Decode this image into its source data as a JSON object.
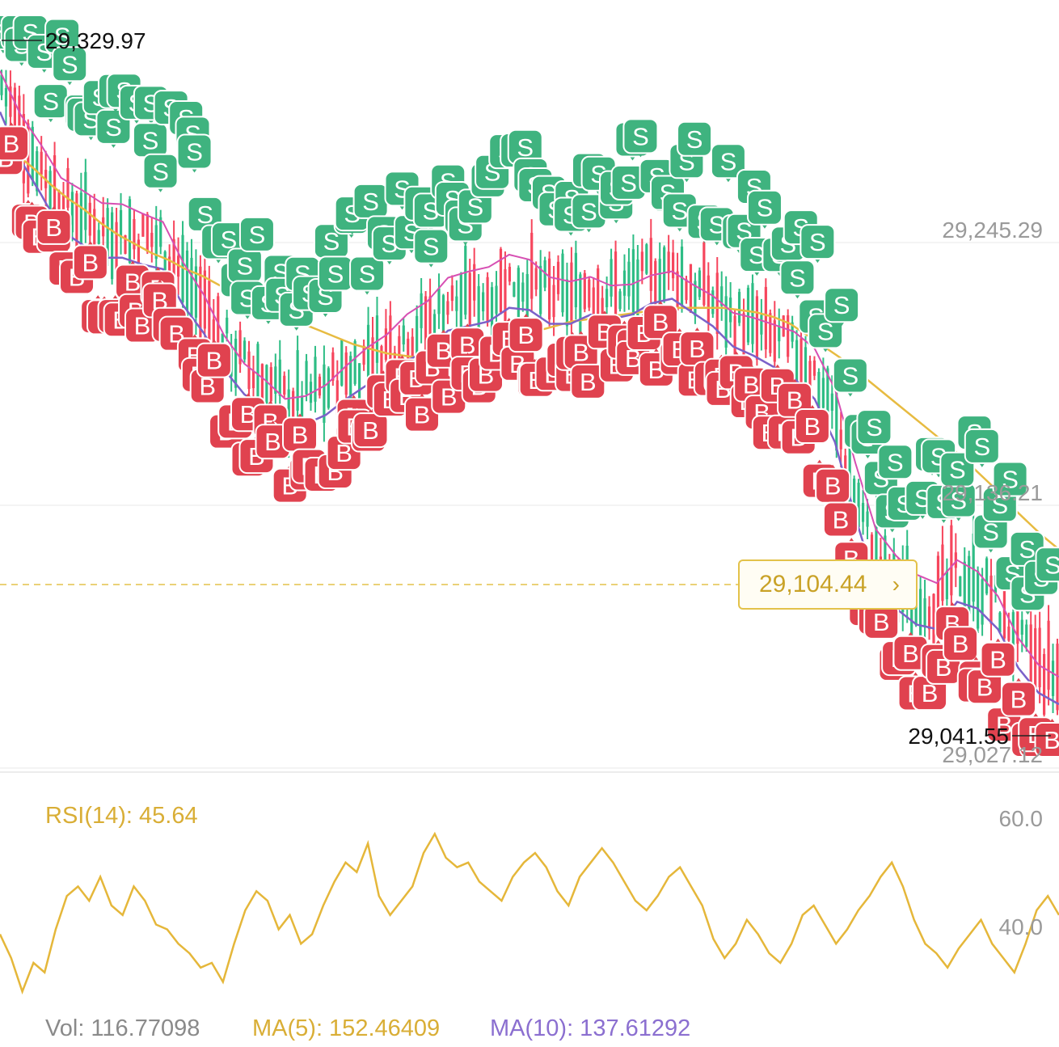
{
  "colors": {
    "up": "#2ebd85",
    "down": "#f6465d",
    "buy_marker": "#e0424f",
    "sell_marker": "#3fb37f",
    "ma_yellow": "#e7bb41",
    "ma_purple": "#7b61c9",
    "ma_pink": "#d74fb3",
    "rsi": "#e5b73a",
    "axis_text": "#9a9a9a",
    "grid": "#f1f1f1"
  },
  "axis": {
    "price_labels": [
      "29,245.29",
      "29,136.21",
      "29,027.12"
    ],
    "rsi_labels": [
      "60.0",
      "40.0"
    ]
  },
  "extremes": {
    "high": "29,329.97",
    "low": "29,041.55"
  },
  "current_price": {
    "label": "29,104.44",
    "chevron": "›"
  },
  "rsi_legend": "RSI(14): 45.64",
  "volume_legend": {
    "vol": "Vol: 116.77098",
    "ma5": "MA(5): 152.46409",
    "ma10": "MA(10): 137.61292"
  },
  "markers": {
    "buy_letter": "B",
    "sell_letter": "S"
  },
  "chart_data": [
    {
      "type": "line",
      "title": "",
      "y_axis_labels": [
        "29,245.29",
        "29,136.21",
        "29,027.12"
      ],
      "ylim": [
        29010,
        29340
      ],
      "annotations": [
        "29,329.97",
        "29,041.55",
        "29,104.44"
      ],
      "series": [
        {
          "values": [
            29293,
            29286,
            29279,
            29273,
            29266,
            29260,
            29255,
            29249,
            29244,
            29240,
            29236,
            29233,
            29229,
            29226,
            29222,
            29219,
            29215,
            29212,
            29208,
            29205,
            29202,
            29199,
            29196,
            29194,
            29192,
            29191,
            29190,
            29190,
            29191,
            29192,
            29194,
            29197,
            29200,
            29202,
            29204,
            29206,
            29207,
            29208,
            29209,
            29210,
            29211,
            29212,
            29212,
            29212,
            29212,
            29211,
            29210,
            29208,
            29205,
            29200,
            29195,
            29190,
            29184,
            29178,
            29172,
            29166,
            29160,
            29154,
            29148,
            29141,
            29134,
            29126,
            29119,
            29112,
            29106
          ]
        },
        {
          "values": [
            29298,
            29277,
            29262,
            29246,
            29240,
            29234,
            29234,
            29231,
            29229,
            29213,
            29201,
            29185,
            29174,
            29168,
            29160,
            29161,
            29165,
            29172,
            29178,
            29182,
            29189,
            29193,
            29202,
            29204,
            29206,
            29212,
            29211,
            29205,
            29205,
            29209,
            29207,
            29209,
            29214,
            29216,
            29210,
            29204,
            29195,
            29191,
            29186,
            29181,
            29172,
            29153,
            29120,
            29091,
            29080,
            29073,
            29071,
            29083,
            29080,
            29071,
            29054,
            29043,
            29038
          ]
        }
      ]
    },
    {
      "type": "line",
      "title": "RSI(14): 45.64",
      "y_axis_labels": [
        "60.0",
        "40.0"
      ],
      "ylim": [
        24,
        68
      ],
      "series": [
        {
          "name": "RSI(14)",
          "values": [
            40,
            35,
            28,
            34,
            32,
            41,
            48,
            50,
            47,
            52,
            46,
            44,
            50,
            47,
            42,
            41,
            38,
            36,
            33,
            34,
            30,
            38,
            45,
            49,
            47,
            41,
            44,
            38,
            40,
            46,
            51,
            55,
            53,
            59,
            48,
            44,
            47,
            50,
            57,
            61,
            56,
            54,
            55,
            51,
            49,
            47,
            52,
            55,
            57,
            54,
            49,
            46,
            52,
            55,
            58,
            55,
            51,
            47,
            45,
            48,
            52,
            54,
            50,
            46,
            39,
            35,
            38,
            43,
            40,
            36,
            34,
            38,
            44,
            46,
            42,
            38,
            41,
            45,
            48,
            52,
            55,
            50,
            43,
            38,
            36,
            33,
            37,
            40,
            43,
            38,
            35,
            32,
            38,
            45,
            48,
            44
          ]
        }
      ]
    }
  ]
}
